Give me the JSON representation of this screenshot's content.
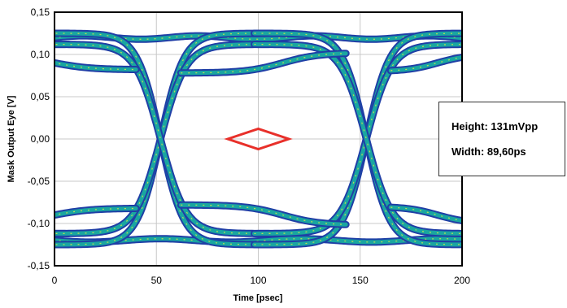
{
  "chart_data": {
    "type": "eye_diagram",
    "xlabel": "Time [psec]",
    "ylabel": "Mask Output Eye [V]",
    "xlim": [
      0,
      200
    ],
    "ylim": [
      -0.15,
      0.15
    ],
    "x_ticks": [
      "0",
      "50",
      "100",
      "150",
      "200"
    ],
    "x_tick_values": [
      0,
      50,
      100,
      150,
      200
    ],
    "y_ticks": [
      "0,15",
      "0,10",
      "0,05",
      "0,00",
      "-0,05",
      "-0,10",
      "-0,15"
    ],
    "y_tick_values": [
      0.15,
      0.1,
      0.05,
      0.0,
      -0.05,
      -0.1,
      -0.15
    ],
    "grid": true,
    "unit_interval_ps": 100,
    "crossing_points_ps": [
      52,
      153
    ],
    "rail_levels_V": {
      "top_outer": 0.12,
      "top_inner": 0.09,
      "bottom_inner": -0.09,
      "bottom_outer": -0.12
    },
    "mask": {
      "color": "#e8302a",
      "points": [
        [
          85,
          0.0
        ],
        [
          100,
          0.012
        ],
        [
          115,
          0.0
        ],
        [
          100,
          -0.012
        ]
      ]
    },
    "trace_colors": {
      "edge": "#1f3fa6",
      "core": "#1aa6a0",
      "density_hot": "#d6e84a"
    },
    "annotations": {
      "height": "Height: 131mVpp",
      "width": "Width: 89,60ps"
    }
  }
}
